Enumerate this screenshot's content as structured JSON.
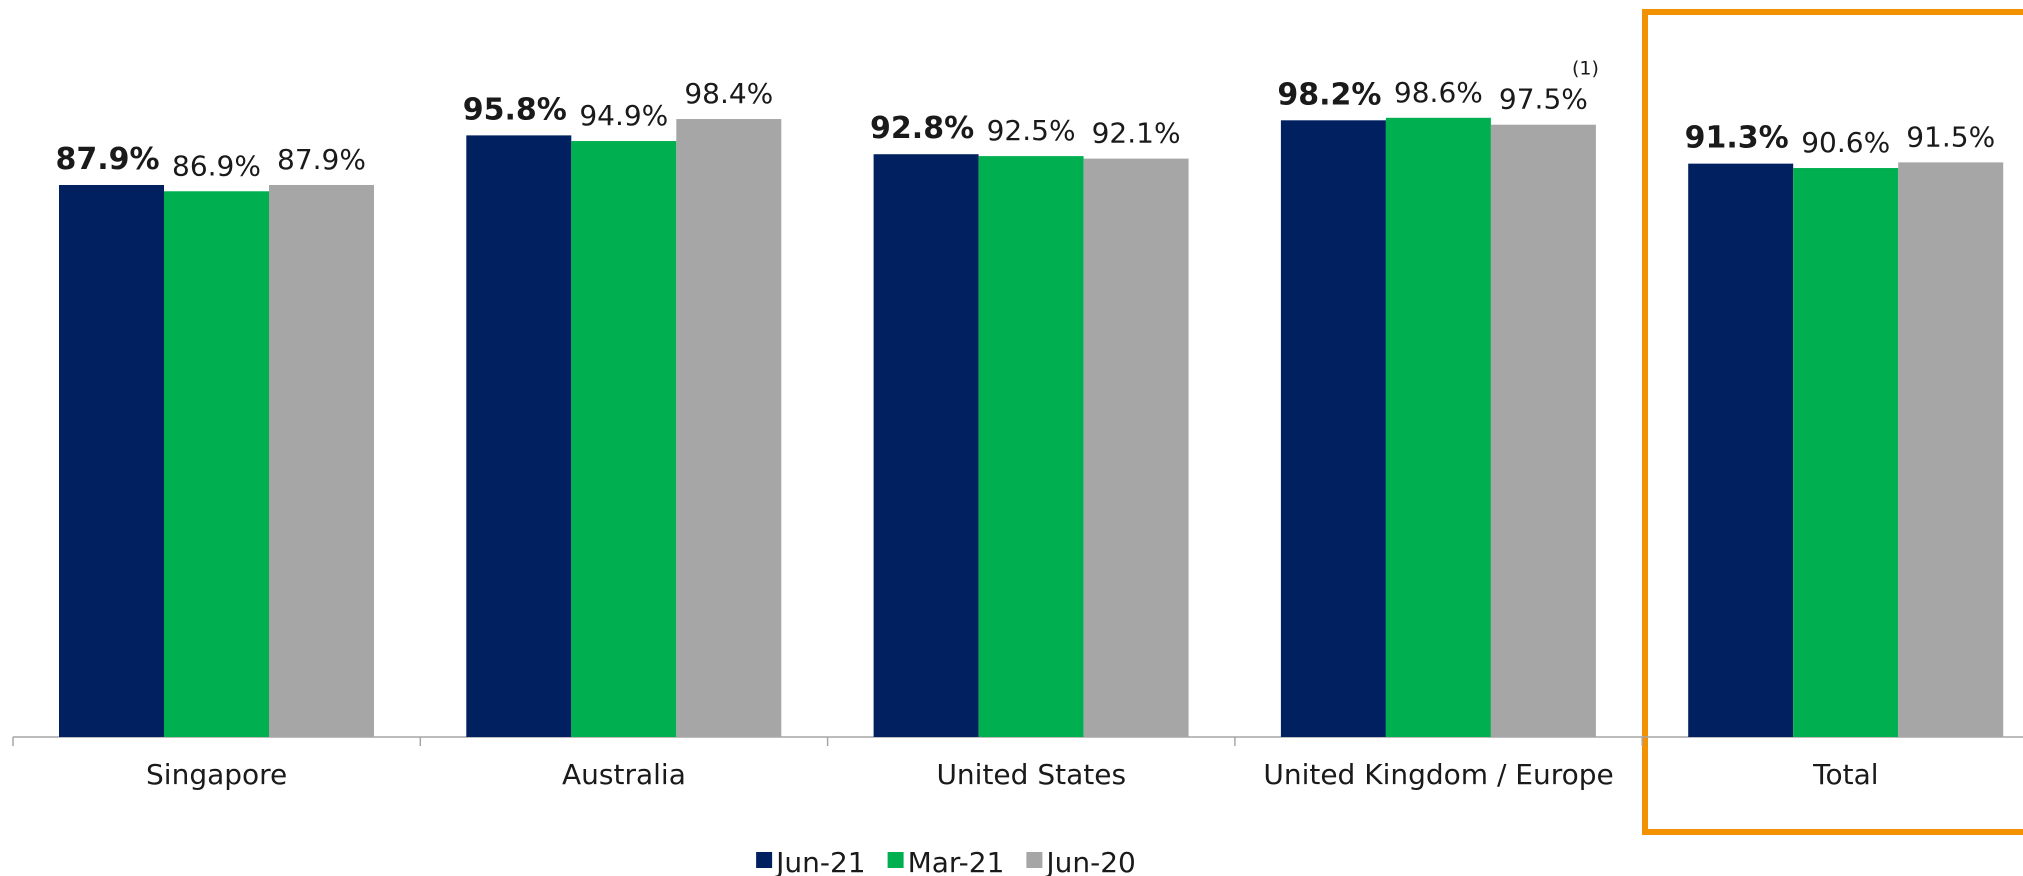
{
  "chart_data": {
    "type": "bar",
    "categories": [
      "Singapore",
      "Australia",
      "United States",
      "United Kingdom / Europe",
      "Total"
    ],
    "series": [
      {
        "name": "Jun-21",
        "color": "#002060",
        "values": [
          87.9,
          95.8,
          92.8,
          98.2,
          91.3
        ],
        "value_labels": [
          "87.9%",
          "95.8%",
          "92.8%",
          "98.2%",
          "91.3%"
        ]
      },
      {
        "name": "Mar-21",
        "color": "#00b050",
        "values": [
          86.9,
          94.9,
          92.5,
          98.6,
          90.6
        ],
        "value_labels": [
          "86.9%",
          "94.9%",
          "92.5%",
          "98.6%",
          "90.6%"
        ]
      },
      {
        "name": "Jun-20",
        "color": "#a6a6a6",
        "values": [
          87.9,
          98.4,
          92.1,
          97.5,
          91.5
        ],
        "value_labels": [
          "87.9%",
          "98.4%",
          "92.1%",
          "97.5%",
          "91.5%"
        ]
      }
    ],
    "annotation": "(1)",
    "ylim": [
      0,
      100
    ]
  }
}
